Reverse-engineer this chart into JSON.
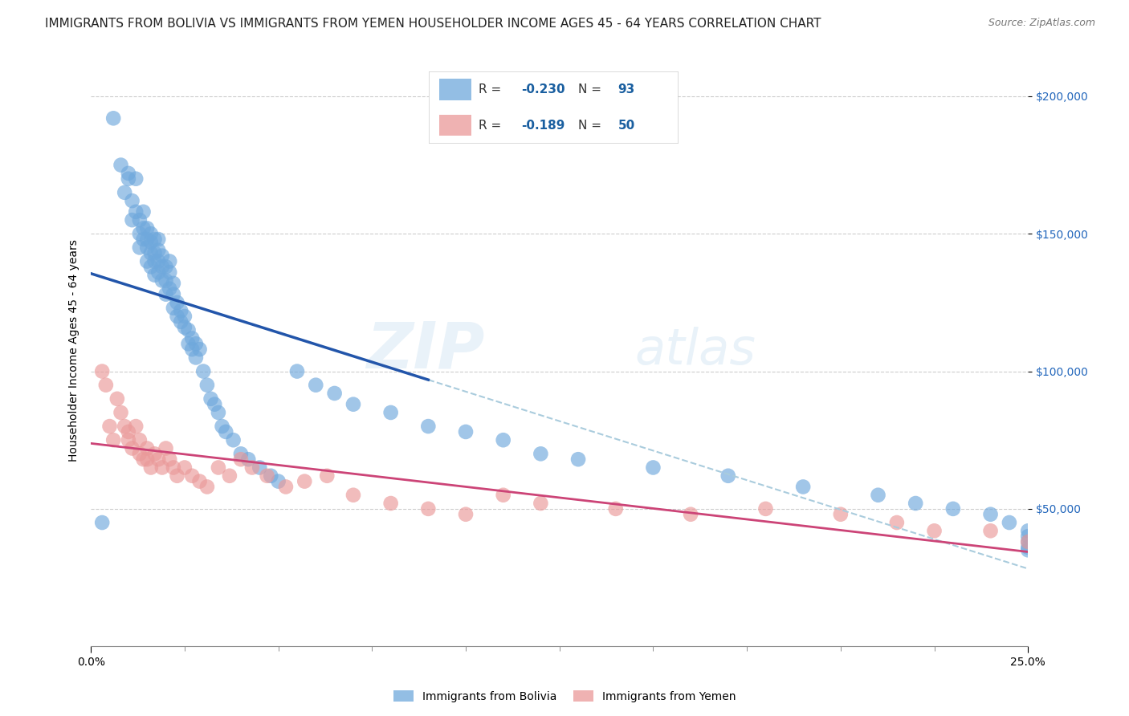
{
  "title": "IMMIGRANTS FROM BOLIVIA VS IMMIGRANTS FROM YEMEN HOUSEHOLDER INCOME AGES 45 - 64 YEARS CORRELATION CHART",
  "source": "Source: ZipAtlas.com",
  "ylabel": "Householder Income Ages 45 - 64 years",
  "ytick_labels": [
    "$50,000",
    "$100,000",
    "$150,000",
    "$200,000"
  ],
  "ytick_vals": [
    50000,
    100000,
    150000,
    200000
  ],
  "ylim": [
    0,
    215000
  ],
  "xlim": [
    0.0,
    0.25
  ],
  "bolivia_R": -0.23,
  "bolivia_N": 93,
  "yemen_R": -0.189,
  "yemen_N": 50,
  "bolivia_color": "#6fa8dc",
  "yemen_color": "#ea9999",
  "bolivia_line_color": "#2255aa",
  "yemen_line_color": "#cc4477",
  "dashed_line_color": "#aaccdd",
  "background_color": "#ffffff",
  "grid_color": "#cccccc",
  "bolivia_x": [
    0.003,
    0.006,
    0.008,
    0.009,
    0.01,
    0.01,
    0.011,
    0.011,
    0.012,
    0.012,
    0.013,
    0.013,
    0.013,
    0.014,
    0.014,
    0.014,
    0.015,
    0.015,
    0.015,
    0.015,
    0.016,
    0.016,
    0.016,
    0.016,
    0.017,
    0.017,
    0.017,
    0.017,
    0.018,
    0.018,
    0.018,
    0.018,
    0.019,
    0.019,
    0.019,
    0.02,
    0.02,
    0.02,
    0.021,
    0.021,
    0.021,
    0.022,
    0.022,
    0.022,
    0.023,
    0.023,
    0.024,
    0.024,
    0.025,
    0.025,
    0.026,
    0.026,
    0.027,
    0.027,
    0.028,
    0.028,
    0.029,
    0.03,
    0.031,
    0.032,
    0.033,
    0.034,
    0.035,
    0.036,
    0.038,
    0.04,
    0.042,
    0.045,
    0.048,
    0.05,
    0.055,
    0.06,
    0.065,
    0.07,
    0.08,
    0.09,
    0.1,
    0.11,
    0.12,
    0.13,
    0.15,
    0.17,
    0.19,
    0.21,
    0.22,
    0.23,
    0.24,
    0.245,
    0.25,
    0.25,
    0.25,
    0.25,
    0.25
  ],
  "bolivia_y": [
    45000,
    192000,
    175000,
    165000,
    170000,
    172000,
    162000,
    155000,
    170000,
    158000,
    155000,
    150000,
    145000,
    158000,
    152000,
    148000,
    152000,
    148000,
    145000,
    140000,
    150000,
    147000,
    143000,
    138000,
    148000,
    143000,
    140000,
    135000,
    148000,
    144000,
    140000,
    136000,
    142000,
    138000,
    133000,
    138000,
    133000,
    128000,
    140000,
    136000,
    130000,
    132000,
    128000,
    123000,
    125000,
    120000,
    122000,
    118000,
    120000,
    116000,
    115000,
    110000,
    112000,
    108000,
    110000,
    105000,
    108000,
    100000,
    95000,
    90000,
    88000,
    85000,
    80000,
    78000,
    75000,
    70000,
    68000,
    65000,
    62000,
    60000,
    100000,
    95000,
    92000,
    88000,
    85000,
    80000,
    78000,
    75000,
    70000,
    68000,
    65000,
    62000,
    58000,
    55000,
    52000,
    50000,
    48000,
    45000,
    42000,
    40000,
    38000,
    36000,
    35000
  ],
  "yemen_x": [
    0.003,
    0.004,
    0.005,
    0.006,
    0.007,
    0.008,
    0.009,
    0.01,
    0.01,
    0.011,
    0.012,
    0.013,
    0.013,
    0.014,
    0.015,
    0.015,
    0.016,
    0.017,
    0.018,
    0.019,
    0.02,
    0.021,
    0.022,
    0.023,
    0.025,
    0.027,
    0.029,
    0.031,
    0.034,
    0.037,
    0.04,
    0.043,
    0.047,
    0.052,
    0.057,
    0.063,
    0.07,
    0.08,
    0.09,
    0.1,
    0.11,
    0.12,
    0.14,
    0.16,
    0.18,
    0.2,
    0.215,
    0.225,
    0.24,
    0.25
  ],
  "yemen_y": [
    100000,
    95000,
    80000,
    75000,
    90000,
    85000,
    80000,
    78000,
    75000,
    72000,
    80000,
    75000,
    70000,
    68000,
    72000,
    68000,
    65000,
    70000,
    68000,
    65000,
    72000,
    68000,
    65000,
    62000,
    65000,
    62000,
    60000,
    58000,
    65000,
    62000,
    68000,
    65000,
    62000,
    58000,
    60000,
    62000,
    55000,
    52000,
    50000,
    48000,
    55000,
    52000,
    50000,
    48000,
    50000,
    48000,
    45000,
    42000,
    42000,
    38000
  ],
  "watermark_zip": "ZIP",
  "watermark_atlas": "atlas",
  "title_fontsize": 11,
  "axis_label_fontsize": 10,
  "tick_fontsize": 10,
  "legend_fontsize": 11
}
